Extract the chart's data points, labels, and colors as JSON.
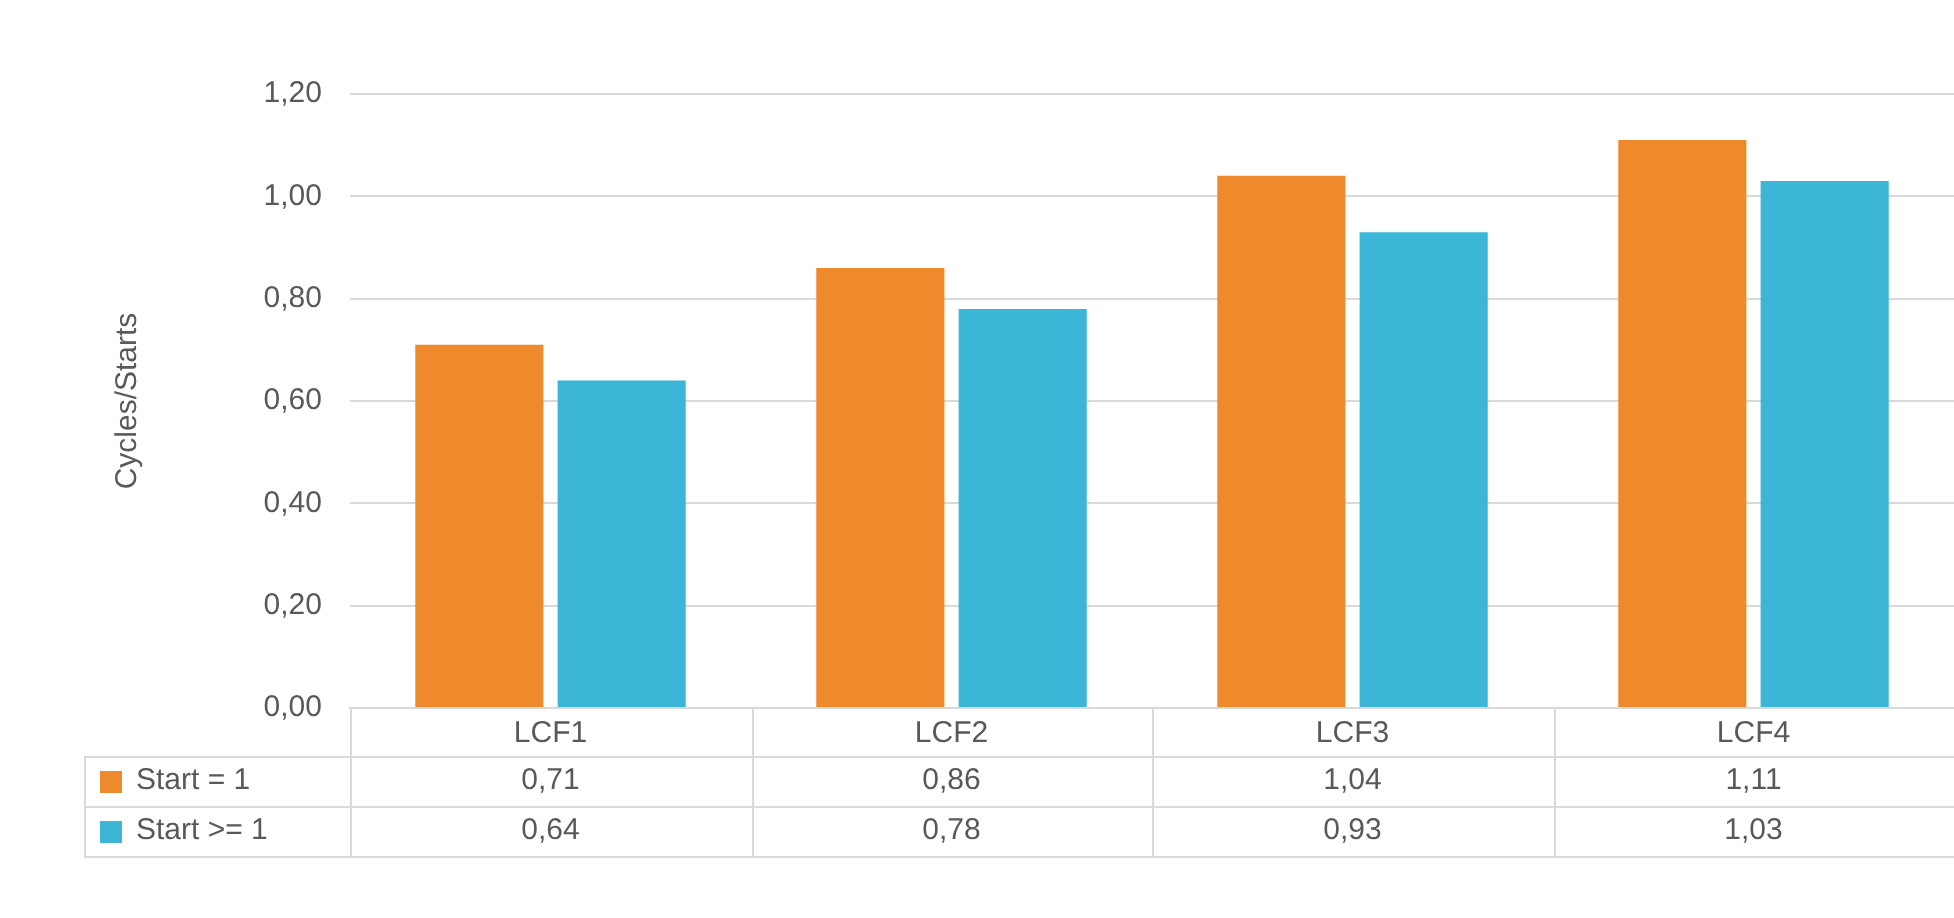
{
  "chart_data": {
    "type": "bar",
    "ylabel": "Cycles/Starts",
    "categories": [
      "LCF1",
      "LCF2",
      "LCF3",
      "LCF4"
    ],
    "series": [
      {
        "name": "Start = 1",
        "color": "#ef8a2c",
        "values": [
          0.71,
          0.86,
          1.04,
          1.11
        ],
        "value_labels": [
          "0,71",
          "0,86",
          "1,04",
          "1,11"
        ]
      },
      {
        "name": "Start >= 1",
        "color": "#3bb6d6",
        "values": [
          0.64,
          0.78,
          0.93,
          1.03
        ],
        "value_labels": [
          "0,64",
          "0,78",
          "0,93",
          "1,03"
        ]
      }
    ],
    "ylim": [
      0,
      1.2
    ],
    "yticks": [
      {
        "value": 0,
        "label": "0,00"
      },
      {
        "value": 0.2,
        "label": "0,20"
      },
      {
        "value": 0.4,
        "label": "0,40"
      },
      {
        "value": 0.6,
        "label": "0,60"
      },
      {
        "value": 0.8,
        "label": "0,80"
      },
      {
        "value": 1,
        "label": "1,00"
      },
      {
        "value": 1.2,
        "label": "1,20"
      }
    ],
    "grid": "y",
    "legend": "bottom"
  }
}
